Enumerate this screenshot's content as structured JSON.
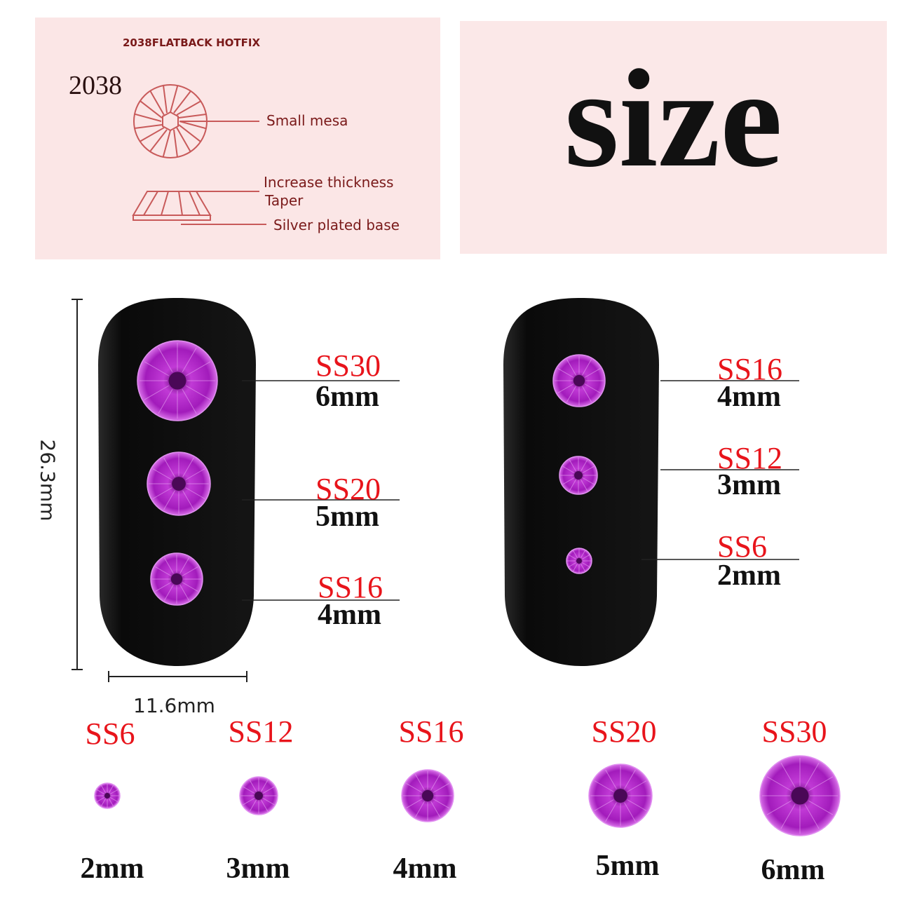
{
  "diagram": {
    "heading": "2038FLATBACK HOTFIX",
    "model": "2038",
    "labels": {
      "mesa": "Small mesa",
      "thickness": "Increase thickness",
      "taper": "Taper",
      "base": "Silver plated base"
    },
    "line_color": "#c85a5a"
  },
  "title": "size",
  "dimensions": {
    "height": "26.3mm",
    "width": "11.6mm"
  },
  "left_nail": [
    {
      "code": "SS30",
      "size": "6mm"
    },
    {
      "code": "SS20",
      "size": "5mm"
    },
    {
      "code": "SS16",
      "size": "4mm"
    }
  ],
  "right_nail": [
    {
      "code": "SS16",
      "size": "4mm"
    },
    {
      "code": "SS12",
      "size": "3mm"
    },
    {
      "code": "SS6",
      "size": "2mm"
    }
  ],
  "size_row": [
    {
      "code": "SS6",
      "size": "2mm"
    },
    {
      "code": "SS12",
      "size": "3mm"
    },
    {
      "code": "SS16",
      "size": "4mm"
    },
    {
      "code": "SS20",
      "size": "5mm"
    },
    {
      "code": "SS30",
      "size": "6mm"
    }
  ],
  "colors": {
    "label_red": "#e8141b",
    "gem": "#b420c8",
    "nail": "#111111",
    "panel": "#fbe6e6"
  }
}
